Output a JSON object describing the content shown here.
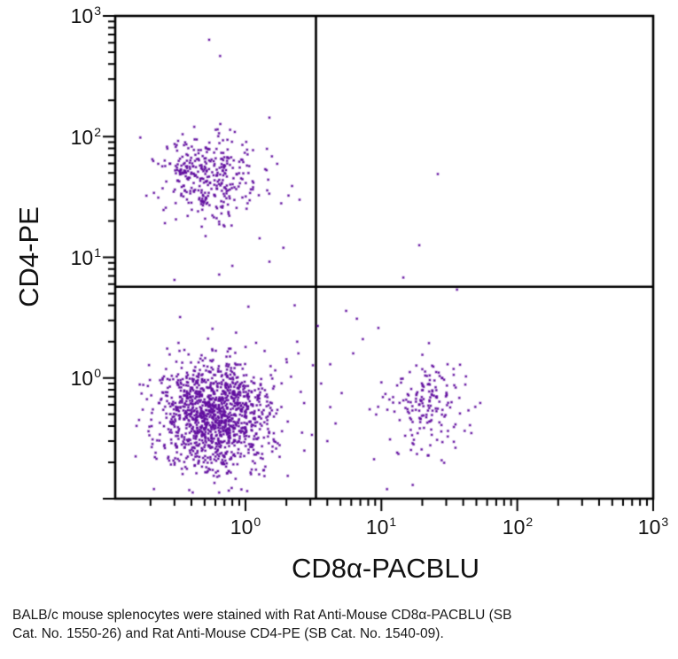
{
  "figure": {
    "background": "#ffffff",
    "frame_color": "#000000",
    "text_color": "#111111"
  },
  "axes": {
    "x": {
      "label": "CD8α-PACBLU",
      "scale": "log",
      "ticks": [
        {
          "base": "10",
          "exp": "0"
        },
        {
          "base": "10",
          "exp": "1"
        },
        {
          "base": "10",
          "exp": "2"
        },
        {
          "base": "10",
          "exp": "3"
        }
      ]
    },
    "y": {
      "label": "CD4-PE",
      "scale": "log",
      "ticks": [
        {
          "base": "10",
          "exp": "3"
        },
        {
          "base": "10",
          "exp": "2"
        },
        {
          "base": "10",
          "exp": "1"
        },
        {
          "base": "10",
          "exp": "0"
        }
      ]
    }
  },
  "caption": {
    "lines": [
      "BALB/c mouse splenocytes were stained with Rat Anti-Mouse CD8α-PACBLU (SB",
      "Cat. No. 1550-26) and Rat Anti-Mouse CD4-PE (SB Cat. No. 1540-09)."
    ]
  },
  "chart_data": {
    "type": "scatter",
    "title": "",
    "xlabel": "CD8α-PACBLU",
    "ylabel": "CD4-PE",
    "x_scale": "log",
    "y_scale": "log",
    "xlim": [
      0.1,
      1000
    ],
    "ylim": [
      0.1,
      1000
    ],
    "x_tick_values": [
      1,
      10,
      100,
      1000
    ],
    "y_tick_values": [
      1,
      10,
      100,
      1000
    ],
    "grid": false,
    "legend": false,
    "point_color": "#62109f",
    "seed": 1337,
    "quadrant_gates": {
      "x": 3.3,
      "y": 5.7
    },
    "clusters": [
      {
        "name": "CD4-positive T cells",
        "center": [
          0.55,
          46
        ],
        "sigma_log": [
          0.18,
          0.17
        ],
        "count": 360
      },
      {
        "name": "double-negative lymphocytes",
        "center": [
          0.6,
          0.48
        ],
        "sigma_log": [
          0.22,
          0.23
        ],
        "count": 1300
      },
      {
        "name": "CD8-positive T cells",
        "center": [
          21,
          0.57
        ],
        "sigma_log": [
          0.16,
          0.19
        ],
        "count": 175
      }
    ],
    "outliers": [
      [
        0.54,
        635
      ],
      [
        0.65,
        466
      ],
      [
        26,
        49
      ],
      [
        19,
        12.6
      ],
      [
        14.5,
        6.8
      ],
      [
        36,
        5.4
      ],
      [
        2.2,
        39
      ],
      [
        2.5,
        30
      ],
      [
        1.9,
        12
      ],
      [
        1.5,
        9.2
      ],
      [
        0.64,
        7.2
      ],
      [
        0.8,
        8.5
      ],
      [
        0.3,
        6.5
      ],
      [
        2.45,
        1.6
      ],
      [
        2.7,
        0.62
      ],
      [
        2.3,
        4.0
      ],
      [
        2.4,
        2.0
      ],
      [
        1.05,
        3.9
      ],
      [
        0.33,
        3.2
      ],
      [
        3.6,
        0.9
      ],
      [
        4.2,
        1.3
      ],
      [
        5.1,
        0.75
      ],
      [
        6.2,
        1.6
      ],
      [
        4.6,
        0.42
      ],
      [
        7.3,
        2.1
      ],
      [
        3.4,
        2.7
      ],
      [
        8.2,
        0.55
      ],
      [
        6.6,
        3.1
      ],
      [
        9.5,
        2.6
      ],
      [
        5.5,
        3.6
      ],
      [
        4.0,
        0.3
      ],
      [
        11,
        0.12
      ],
      [
        17,
        0.13
      ]
    ]
  }
}
